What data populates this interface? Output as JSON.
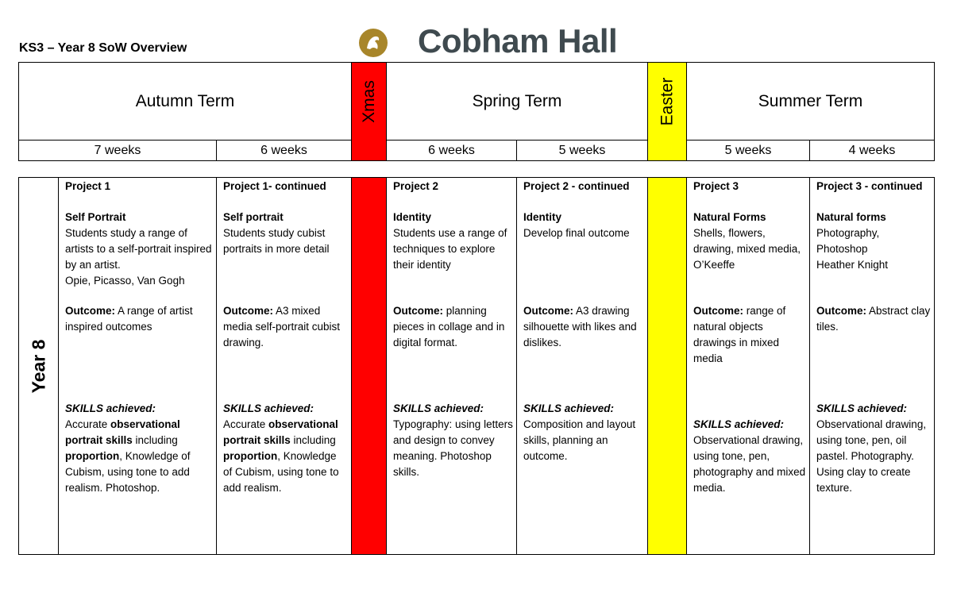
{
  "header": {
    "title": "KS3 – Year 8 SoW Overview",
    "school": "Cobham Hall"
  },
  "terms": [
    {
      "name": "Autumn Term",
      "weeks": [
        "7 weeks",
        "6 weeks"
      ]
    },
    {
      "name": "Spring Term",
      "weeks": [
        "6 weeks",
        "5 weeks"
      ]
    },
    {
      "name": "Summer Term",
      "weeks": [
        "5 weeks",
        "4 weeks"
      ]
    }
  ],
  "breaks": [
    {
      "name": "Xmas",
      "color": "#ff0000"
    },
    {
      "name": "Easter",
      "color": "#ffff00"
    }
  ],
  "year": "Year 8",
  "projects": [
    {
      "project": "Project 1",
      "title": "Self Portrait",
      "description": [
        "Students study a range of artists to a self-portrait inspired by an artist.",
        "Opie, Picasso, Van Gogh"
      ],
      "outcome": [
        {
          "text": "Outcome:",
          "bold": true
        },
        {
          "text": " A range of artist inspired outcomes"
        }
      ],
      "skills_label": "SKILLS achieved:",
      "skills": [
        {
          "text": "Accurate "
        },
        {
          "text": "observational portrait skills",
          "bold": true
        },
        {
          "text": " including "
        },
        {
          "text": "proportion",
          "bold": true
        },
        {
          "text": ", Knowledge of Cubism, using tone to add realism. Photoshop."
        }
      ]
    },
    {
      "project": "Project 1- continued",
      "title": "Self portrait",
      "description": [
        "Students study cubist portraits in more detail"
      ],
      "outcome": [
        {
          "text": "Outcome:",
          "bold": true
        },
        {
          "text": " A3 mixed media self-portrait cubist drawing."
        }
      ],
      "skills_label": "SKILLS achieved:",
      "skills": [
        {
          "text": "Accurate "
        },
        {
          "text": "observational portrait skills",
          "bold": true
        },
        {
          "text": " including "
        },
        {
          "text": "proportion",
          "bold": true
        },
        {
          "text": ", Knowledge of Cubism, using tone to add realism."
        }
      ]
    },
    {
      "project": "Project 2",
      "title": "Identity",
      "description": [
        "Students use a range of techniques to explore their identity"
      ],
      "outcome": [
        {
          "text": "Outcome:",
          "bold": true
        },
        {
          "text": " planning pieces in collage and in digital format."
        }
      ],
      "skills_label": "SKILLS achieved:",
      "skills": [
        {
          "text": "Typography: using letters and design to convey meaning. Photoshop skills."
        }
      ]
    },
    {
      "project": "Project 2 - continued",
      "title": "Identity",
      "description": [
        "Develop final outcome"
      ],
      "outcome": [
        {
          "text": "Outcome:",
          "bold": true
        },
        {
          "text": " A3 drawing silhouette with likes and dislikes."
        }
      ],
      "skills_label": "SKILLS achieved:",
      "skills": [
        {
          "text": "Composition and layout skills, planning an outcome."
        }
      ]
    },
    {
      "project": "Project 3",
      "title": "Natural Forms",
      "description": [
        "Shells, flowers, drawing, mixed media, O’Keeffe"
      ],
      "outcome": [
        {
          "text": "Outcome:",
          "bold": true
        },
        {
          "text": " range of natural objects drawings in mixed media"
        }
      ],
      "skills_label": "SKILLS achieved:",
      "skills": [
        {
          "text": "Observational drawing, using tone, pen, photography and mixed media."
        }
      ]
    },
    {
      "project": "Project 3 - continued",
      "title": "Natural forms",
      "description": [
        "Photography,",
        "Photoshop",
        "Heather Knight"
      ],
      "outcome": [
        {
          "text": "Outcome:",
          "bold": true
        },
        {
          "text": " Abstract clay tiles."
        }
      ],
      "skills_label": "SKILLS achieved:",
      "skills": [
        {
          "text": "Observational drawing, using tone, pen, oil pastel. Photography. Using clay to create texture."
        }
      ]
    }
  ]
}
